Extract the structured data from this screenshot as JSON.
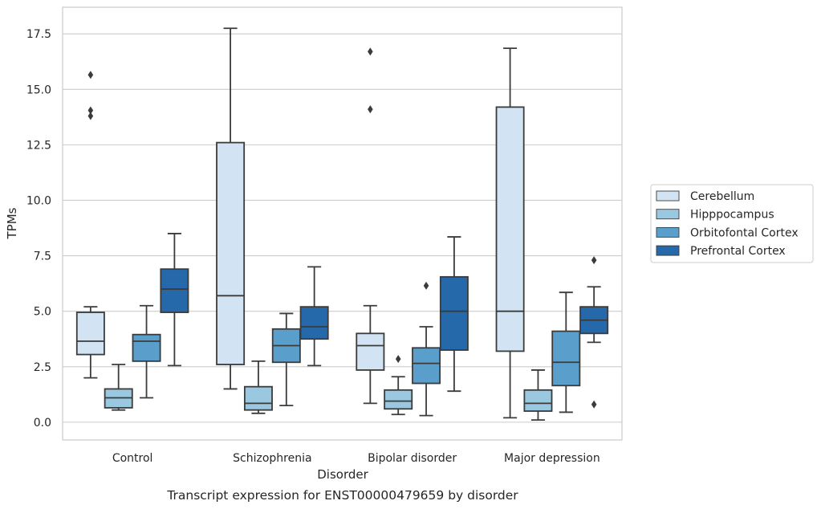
{
  "caption": "Transcript expression for ENST00000479659 by disorder",
  "chart_data": {
    "type": "box",
    "xlabel": "Disorder",
    "ylabel": "TPMs",
    "ylim": [
      -0.8,
      18.7
    ],
    "yticks": [
      "0.0",
      "2.5",
      "5.0",
      "7.5",
      "10.0",
      "12.5",
      "15.0",
      "17.5"
    ],
    "ytick_values": [
      0,
      2.5,
      5,
      7.5,
      10,
      12.5,
      15,
      17.5
    ],
    "grid": "horizontal",
    "legend_position": "right",
    "categories": [
      "Control",
      "Schizophrenia",
      "Bipolar disorder",
      "Major depression"
    ],
    "series": [
      {
        "name": "Cerebellum",
        "color": "#d2e3f3",
        "boxes": [
          {
            "whislo": 2.0,
            "q1": 3.05,
            "med": 3.65,
            "q3": 4.95,
            "whishi": 5.2,
            "fliers": [
              13.8,
              14.05,
              15.65
            ]
          },
          {
            "whislo": 1.5,
            "q1": 2.6,
            "med": 5.7,
            "q3": 12.6,
            "whishi": 17.75,
            "fliers": []
          },
          {
            "whislo": 0.85,
            "q1": 2.35,
            "med": 3.45,
            "q3": 4.0,
            "whishi": 5.25,
            "fliers": [
              14.1,
              16.7
            ]
          },
          {
            "whislo": 0.2,
            "q1": 3.2,
            "med": 5.0,
            "q3": 14.2,
            "whishi": 16.85,
            "fliers": []
          }
        ]
      },
      {
        "name": "Hipppocampus",
        "color": "#9ac8e0",
        "boxes": [
          {
            "whislo": 0.55,
            "q1": 0.65,
            "med": 1.1,
            "q3": 1.5,
            "whishi": 2.6,
            "fliers": []
          },
          {
            "whislo": 0.4,
            "q1": 0.55,
            "med": 0.85,
            "q3": 1.6,
            "whishi": 2.75,
            "fliers": []
          },
          {
            "whislo": 0.35,
            "q1": 0.6,
            "med": 0.95,
            "q3": 1.45,
            "whishi": 2.05,
            "fliers": [
              2.85
            ]
          },
          {
            "whislo": 0.1,
            "q1": 0.5,
            "med": 0.85,
            "q3": 1.45,
            "whishi": 2.35,
            "fliers": []
          }
        ]
      },
      {
        "name": "Orbitofontal Cortex",
        "color": "#5a9fcb",
        "boxes": [
          {
            "whislo": 1.1,
            "q1": 2.75,
            "med": 3.65,
            "q3": 3.95,
            "whishi": 5.25,
            "fliers": []
          },
          {
            "whislo": 0.75,
            "q1": 2.7,
            "med": 3.45,
            "q3": 4.2,
            "whishi": 4.9,
            "fliers": []
          },
          {
            "whislo": 0.3,
            "q1": 1.75,
            "med": 2.65,
            "q3": 3.35,
            "whishi": 4.3,
            "fliers": [
              6.15
            ]
          },
          {
            "whislo": 0.45,
            "q1": 1.65,
            "med": 2.7,
            "q3": 4.1,
            "whishi": 5.85,
            "fliers": []
          }
        ]
      },
      {
        "name": "Prefrontal Cortex",
        "color": "#2569ab",
        "boxes": [
          {
            "whislo": 2.55,
            "q1": 4.95,
            "med": 6.0,
            "q3": 6.9,
            "whishi": 8.5,
            "fliers": []
          },
          {
            "whislo": 2.55,
            "q1": 3.75,
            "med": 4.3,
            "q3": 5.2,
            "whishi": 7.0,
            "fliers": []
          },
          {
            "whislo": 1.4,
            "q1": 3.25,
            "med": 5.0,
            "q3": 6.55,
            "whishi": 8.35,
            "fliers": []
          },
          {
            "whislo": 3.6,
            "q1": 4.0,
            "med": 4.6,
            "q3": 5.2,
            "whishi": 6.1,
            "fliers": [
              0.8,
              7.3
            ]
          }
        ]
      }
    ]
  }
}
